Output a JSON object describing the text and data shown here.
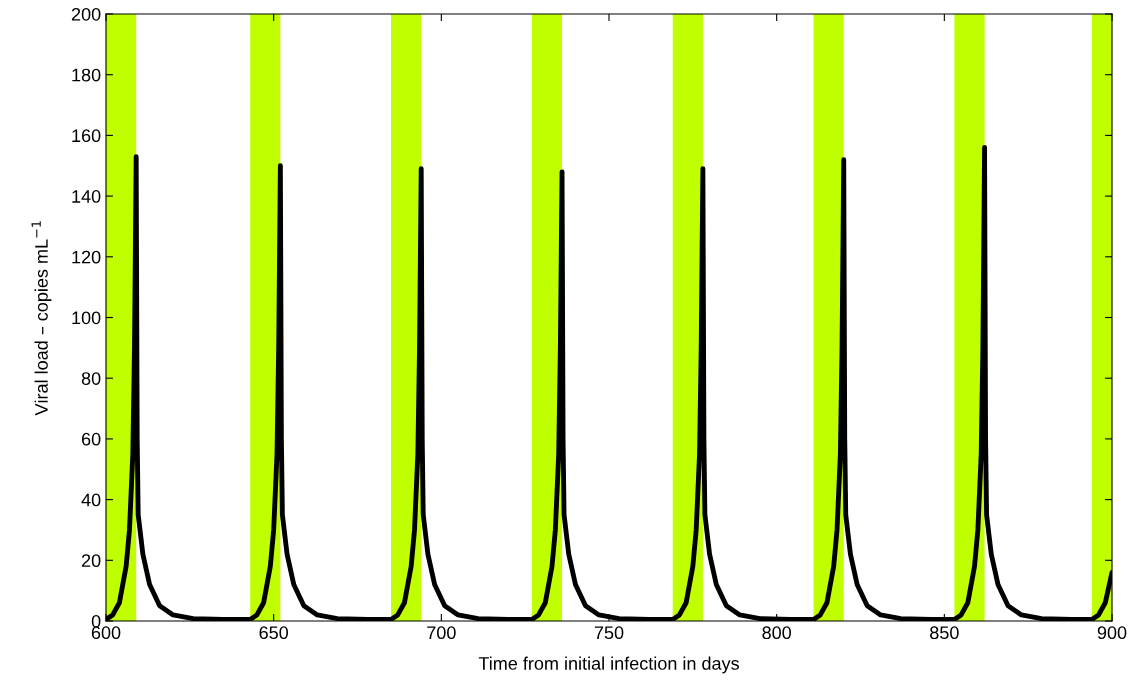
{
  "chart_data": {
    "type": "line",
    "xlabel": "Time from initial infection in days",
    "ylabel": "Viral load – copies mL$^{−1}$",
    "xlim": [
      600,
      900
    ],
    "ylim": [
      0,
      200
    ],
    "xticks": [
      600,
      650,
      700,
      750,
      800,
      850,
      900
    ],
    "yticks": [
      0,
      20,
      40,
      60,
      80,
      100,
      120,
      140,
      160,
      180,
      200
    ],
    "grid": false,
    "marker": "none",
    "line_style": "solid",
    "bands": [
      {
        "axis": "x",
        "from": 600,
        "to": 609,
        "color": "#bfff00"
      },
      {
        "axis": "x",
        "from": 643,
        "to": 652,
        "color": "#bfff00"
      },
      {
        "axis": "x",
        "from": 685,
        "to": 694,
        "color": "#bfff00"
      },
      {
        "axis": "x",
        "from": 727,
        "to": 736,
        "color": "#bfff00"
      },
      {
        "axis": "x",
        "from": 769,
        "to": 778,
        "color": "#bfff00"
      },
      {
        "axis": "x",
        "from": 811,
        "to": 820,
        "color": "#bfff00"
      },
      {
        "axis": "x",
        "from": 853,
        "to": 862,
        "color": "#bfff00"
      },
      {
        "axis": "x",
        "from": 894,
        "to": 900,
        "color": "#bfff00"
      }
    ],
    "series": [
      {
        "color": "#000000",
        "x": [
          600,
          602,
          604,
          606,
          607,
          608,
          608.5,
          609,
          609.3,
          609.6,
          611,
          613,
          616,
          620,
          626,
          635,
          643,
          645,
          647,
          649,
          650,
          651,
          651.5,
          652,
          652.3,
          652.6,
          654,
          656,
          659,
          663,
          669,
          678,
          685,
          687,
          689,
          691,
          692,
          693,
          693.5,
          694,
          694.3,
          694.6,
          696,
          698,
          701,
          705,
          711,
          720,
          727,
          729,
          731,
          733,
          734,
          735,
          735.5,
          736,
          736.3,
          736.6,
          738,
          740,
          743,
          747,
          753,
          762,
          769,
          771,
          773,
          775,
          776,
          777,
          777.5,
          778,
          778.3,
          778.6,
          780,
          782,
          785,
          789,
          795,
          804,
          811,
          813,
          815,
          817,
          818,
          819,
          819.5,
          820,
          820.3,
          820.6,
          822,
          824,
          827,
          831,
          837,
          846,
          853,
          855,
          857,
          859,
          860,
          861,
          861.5,
          862,
          862.3,
          862.6,
          864,
          866,
          869,
          873,
          879,
          888,
          894,
          896,
          898,
          900
        ],
        "values": [
          0.5,
          2,
          6,
          18,
          30,
          55,
          90,
          153,
          60,
          35,
          22,
          12,
          5,
          2,
          0.8,
          0.5,
          0.5,
          2,
          6,
          18,
          30,
          55,
          90,
          150,
          60,
          35,
          22,
          12,
          5,
          2,
          0.8,
          0.5,
          0.5,
          2,
          6,
          18,
          30,
          55,
          90,
          149,
          60,
          35,
          22,
          12,
          5,
          2,
          0.8,
          0.5,
          0.5,
          2,
          6,
          18,
          30,
          55,
          90,
          148,
          60,
          35,
          22,
          12,
          5,
          2,
          0.8,
          0.5,
          0.5,
          2,
          6,
          18,
          30,
          55,
          90,
          149,
          60,
          35,
          22,
          12,
          5,
          2,
          0.8,
          0.5,
          0.5,
          2,
          6,
          18,
          30,
          55,
          90,
          152,
          60,
          35,
          22,
          12,
          5,
          2,
          0.8,
          0.5,
          0.5,
          2,
          6,
          18,
          30,
          55,
          90,
          156,
          60,
          35,
          22,
          12,
          5,
          2,
          0.8,
          0.5,
          0.5,
          2,
          6,
          16
        ]
      }
    ]
  }
}
